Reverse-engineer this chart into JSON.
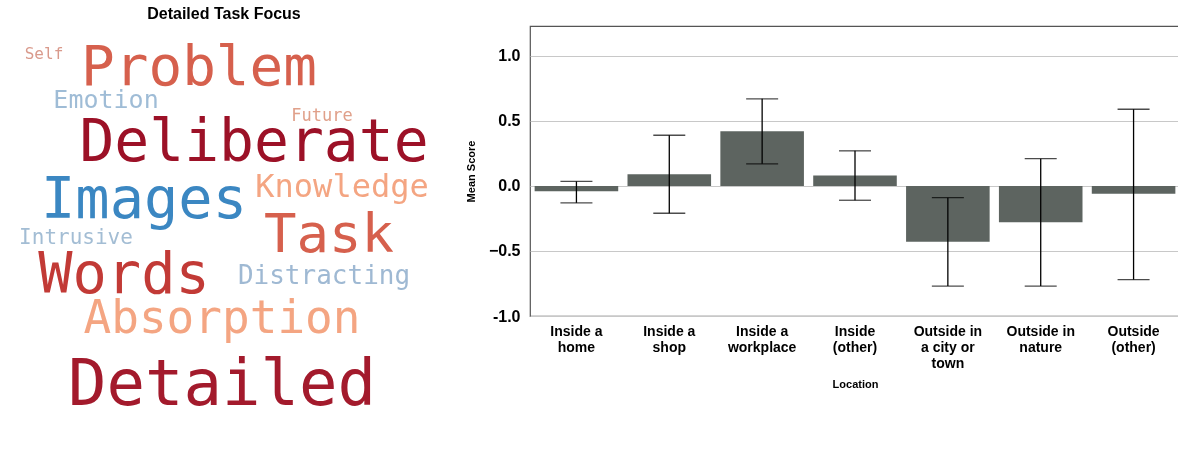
{
  "chart_data": [
    {
      "type": "other",
      "title": "Detailed Task Focus",
      "annotations": [
        "Self",
        "Problem",
        "Emotion",
        "Future",
        "Deliberate",
        "Knowledge",
        "Images",
        "Intrusive",
        "Task",
        "Words",
        "Distracting",
        "Absorption",
        "Detailed"
      ],
      "colors": [
        "#d99a8c",
        "#d6604d",
        "#9fbcd6",
        "#e0a08a",
        "#9c1127",
        "#f4a582",
        "#3b87c2",
        "#a3bdd4",
        "#d6604d",
        "#c23a36",
        "#9fb9d3",
        "#f4a582",
        "#a31a2c"
      ]
    },
    {
      "type": "bar",
      "xlabel": "Location",
      "ylabel": "Mean Score",
      "categories": [
        "Inside a home",
        "Inside a shop",
        "Inside a workplace",
        "Inside (other)",
        "Outside in a city or town",
        "Outside in nature",
        "Outside (other)"
      ],
      "values": [
        -0.04,
        0.09,
        0.42,
        0.08,
        -0.43,
        -0.28,
        -0.06
      ],
      "errors": [
        [
          -0.13,
          0.035
        ],
        [
          -0.21,
          0.39
        ],
        [
          0.17,
          0.67
        ],
        [
          -0.11,
          0.27
        ],
        [
          -0.77,
          -0.09
        ],
        [
          -0.77,
          0.21
        ],
        [
          -0.72,
          0.59
        ]
      ],
      "color": "#5d6460",
      "ylim": [
        -1.0,
        1.23
      ],
      "yticks": [
        {
          "value": -1.0,
          "label": "-1.0"
        },
        -0.5,
        {
          "value": 0,
          "label": "0.0"
        },
        0.5,
        {
          "value": 1.0,
          "label": "1.0"
        }
      ],
      "grid": "y"
    }
  ]
}
